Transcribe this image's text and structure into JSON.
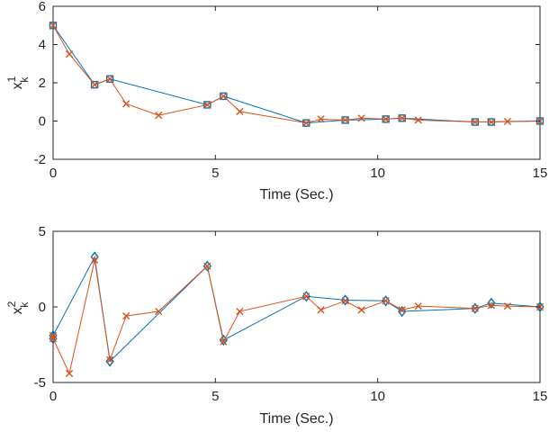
{
  "chart_data": [
    {
      "type": "line",
      "xlabel": "Time (Sec.)",
      "ylabel": {
        "base": "x",
        "sup": "1",
        "sub": "k"
      },
      "xlim": [
        0,
        15
      ],
      "ylim": [
        -2,
        6
      ],
      "xticks": [
        "0",
        "5",
        "10",
        "15"
      ],
      "yticks": [
        "-2",
        "0",
        "2",
        "4",
        "6"
      ],
      "series": [
        {
          "name": "blue-square",
          "color": "#0072BD",
          "marker": "square",
          "x": [
            0,
            1.28,
            1.75,
            4.75,
            5.25,
            7.8,
            9.0,
            10.25,
            10.75,
            13.0,
            13.5,
            15.0
          ],
          "y": [
            5.0,
            1.9,
            2.2,
            0.85,
            1.3,
            -0.1,
            0.05,
            0.1,
            0.15,
            -0.05,
            -0.05,
            0.0
          ]
        },
        {
          "name": "orange-x",
          "color": "#D95319",
          "marker": "x",
          "x": [
            0,
            0.5,
            1.28,
            1.75,
            2.25,
            3.25,
            4.75,
            5.25,
            5.75,
            7.8,
            8.25,
            9.0,
            9.5,
            10.25,
            10.75,
            11.25,
            13.0,
            13.5,
            14.0,
            15.0
          ],
          "y": [
            5.0,
            3.5,
            1.9,
            2.2,
            0.9,
            0.3,
            0.85,
            1.3,
            0.5,
            -0.1,
            0.1,
            0.05,
            0.15,
            0.1,
            0.15,
            0.05,
            -0.05,
            -0.05,
            -0.02,
            0.0
          ]
        }
      ]
    },
    {
      "type": "line",
      "xlabel": "Time (Sec.)",
      "ylabel": {
        "base": "x",
        "sup": "2",
        "sub": "k"
      },
      "xlim": [
        0,
        15
      ],
      "ylim": [
        -5,
        5
      ],
      "xticks": [
        "0",
        "5",
        "10",
        "15"
      ],
      "yticks": [
        "-5",
        "0",
        "5"
      ],
      "series": [
        {
          "name": "blue-diamond",
          "color": "#0072BD",
          "marker": "diamond",
          "x": [
            0,
            0,
            1.28,
            1.75,
            4.75,
            5.25,
            7.8,
            9.0,
            10.25,
            10.75,
            13.0,
            13.5,
            15.0
          ],
          "y": [
            -2.1,
            -1.9,
            3.3,
            -3.6,
            2.7,
            -2.2,
            0.7,
            0.45,
            0.4,
            -0.3,
            -0.1,
            0.25,
            0.0
          ]
        },
        {
          "name": "orange-x",
          "color": "#D95319",
          "marker": "x",
          "x": [
            0,
            0,
            0.5,
            1.28,
            1.75,
            2.25,
            3.25,
            4.75,
            5.25,
            5.75,
            7.8,
            8.25,
            9.0,
            9.5,
            10.25,
            10.75,
            11.25,
            13.0,
            13.5,
            14.0,
            15.0
          ],
          "y": [
            -1.9,
            -2.1,
            -4.4,
            3.1,
            -3.5,
            -0.6,
            -0.3,
            2.7,
            -2.3,
            -0.3,
            0.7,
            -0.2,
            0.4,
            -0.2,
            0.4,
            -0.2,
            0.05,
            -0.1,
            0.1,
            0.05,
            0.0
          ]
        }
      ]
    }
  ]
}
